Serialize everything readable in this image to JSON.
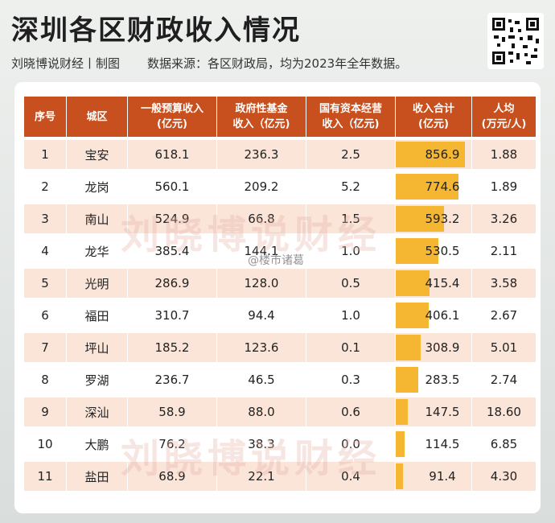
{
  "title": "深圳各区财政收入情况",
  "subtitle": {
    "author": "刘晓博说财经丨制图",
    "source": "数据来源：各区财政局，均为2023年全年数据。"
  },
  "headers": [
    {
      "l1": "序号",
      "l2": ""
    },
    {
      "l1": "城区",
      "l2": ""
    },
    {
      "l1": "一般预算收入",
      "l2": "(亿元)"
    },
    {
      "l1": "政府性基金",
      "l2": "收入（亿元)"
    },
    {
      "l1": "国有资本经营",
      "l2": "收入（亿元)"
    },
    {
      "l1": "收入合计",
      "l2": "(亿元)"
    },
    {
      "l1": "人均",
      "l2": "(万元/人)"
    }
  ],
  "rows": [
    {
      "no": "1",
      "district": "宝安",
      "general": "618.1",
      "fund": "236.3",
      "soe": "2.5",
      "total": "856.9",
      "per_capita": "1.88"
    },
    {
      "no": "2",
      "district": "龙岗",
      "general": "560.1",
      "fund": "209.2",
      "soe": "5.2",
      "total": "774.6",
      "per_capita": "1.89"
    },
    {
      "no": "3",
      "district": "南山",
      "general": "524.9",
      "fund": "66.8",
      "soe": "1.5",
      "total": "593.2",
      "per_capita": "3.26"
    },
    {
      "no": "4",
      "district": "龙华",
      "general": "385.4",
      "fund": "144.1",
      "soe": "1.0",
      "total": "530.5",
      "per_capita": "2.11"
    },
    {
      "no": "5",
      "district": "光明",
      "general": "286.9",
      "fund": "128.0",
      "soe": "0.5",
      "total": "415.4",
      "per_capita": "3.58"
    },
    {
      "no": "6",
      "district": "福田",
      "general": "310.7",
      "fund": "94.4",
      "soe": "1.0",
      "total": "406.1",
      "per_capita": "2.67"
    },
    {
      "no": "7",
      "district": "坪山",
      "general": "185.2",
      "fund": "123.6",
      "soe": "0.1",
      "total": "308.9",
      "per_capita": "5.01"
    },
    {
      "no": "8",
      "district": "罗湖",
      "general": "236.7",
      "fund": "46.5",
      "soe": "0.3",
      "total": "283.5",
      "per_capita": "2.74"
    },
    {
      "no": "9",
      "district": "深汕",
      "general": "58.9",
      "fund": "88.0",
      "soe": "0.6",
      "total": "147.5",
      "per_capita": "18.60"
    },
    {
      "no": "10",
      "district": "大鹏",
      "general": "76.2",
      "fund": "38.3",
      "soe": "0.0",
      "total": "114.5",
      "per_capita": "6.85"
    },
    {
      "no": "11",
      "district": "盐田",
      "general": "68.9",
      "fund": "22.1",
      "soe": "0.4",
      "total": "91.4",
      "per_capita": "4.30"
    }
  ],
  "total_max": 856.9,
  "watermarks": [
    "刘晓博说财经",
    "刘晓博说财经"
  ],
  "weibo_mark": "@楼市诸葛",
  "colors": {
    "header": "#c8501e",
    "stripe": "#fbe4d8",
    "bar": "#f5b731"
  }
}
